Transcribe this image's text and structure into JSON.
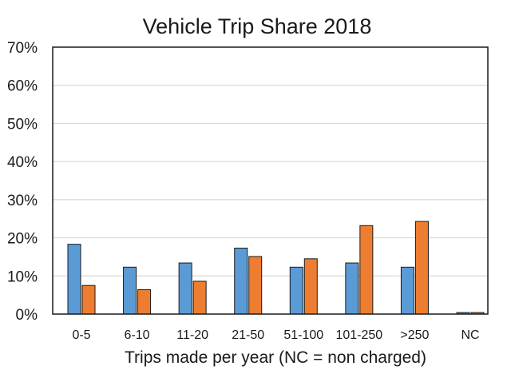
{
  "chart_data": {
    "type": "bar",
    "title": "Vehicle Trip Share 2018",
    "xlabel": "Trips made per year (NC = non charged)",
    "ylabel": "",
    "ylim": [
      0,
      70
    ],
    "yticks": [
      "0%",
      "10%",
      "20%",
      "30%",
      "40%",
      "50%",
      "60%",
      "70%"
    ],
    "ytick_values": [
      0,
      10,
      20,
      30,
      40,
      50,
      60,
      70
    ],
    "grid": true,
    "legend": "none",
    "categories": [
      "0-5",
      "6-10",
      "11-20",
      "21-50",
      "51-100",
      "101-250",
      ">250",
      "NC"
    ],
    "series": [
      {
        "color": "#5B9BD5",
        "values": [
          18.3,
          12.3,
          13.4,
          17.3,
          12.3,
          13.4,
          12.3,
          0.4
        ]
      },
      {
        "color": "#ED7D31",
        "values": [
          7.5,
          6.4,
          8.6,
          15.1,
          14.5,
          23.2,
          24.3,
          0.4
        ]
      }
    ]
  }
}
